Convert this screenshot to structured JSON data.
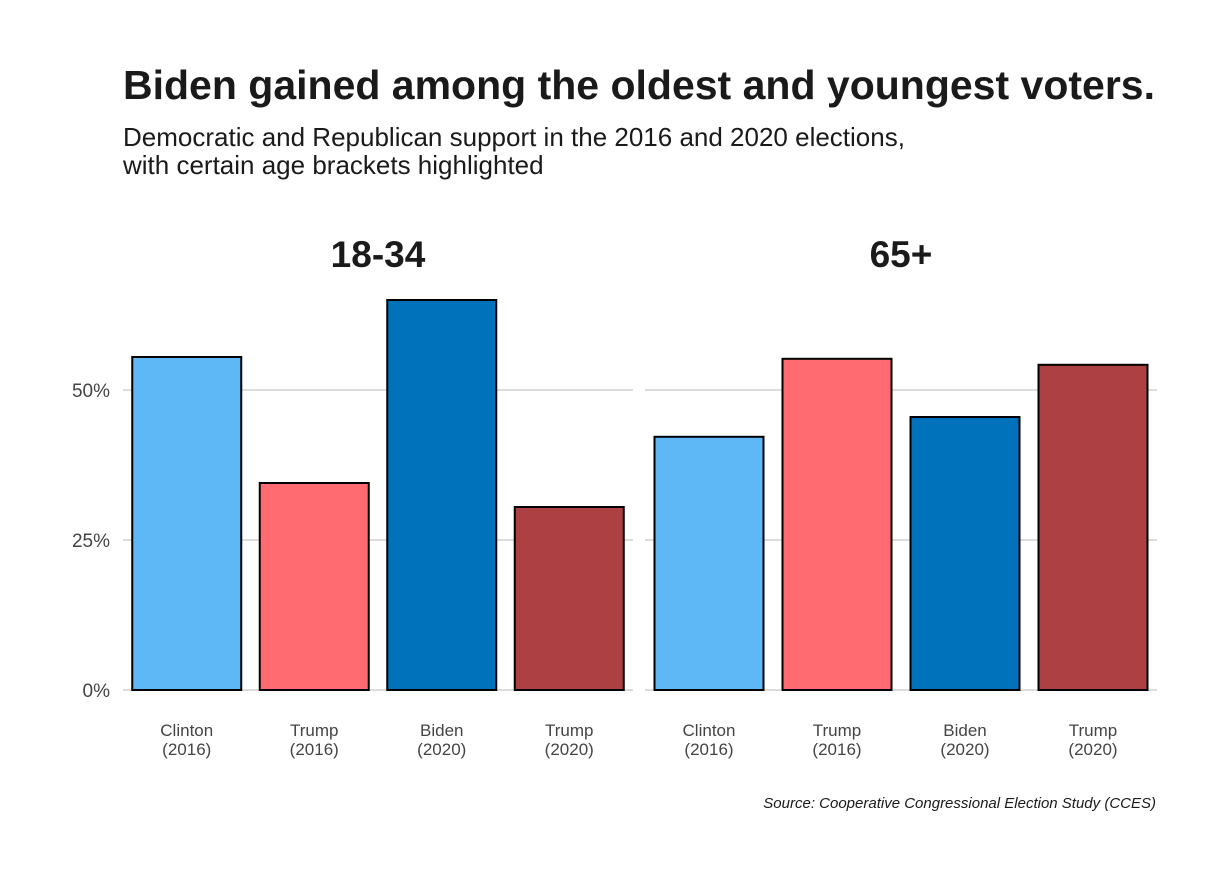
{
  "chart_data": {
    "type": "bar",
    "title": "Biden gained among the oldest and youngest voters.",
    "subtitle": [
      "Democratic and Republican support in the 2016 and 2020 elections,",
      "with certain age brackets highlighted"
    ],
    "source": "Source: Cooperative Congressional Election Study (CCES)",
    "ylim": [
      0,
      0.7
    ],
    "y_ticks": [
      {
        "value": 0,
        "label": "0%"
      },
      {
        "value": 0.25,
        "label": "25%"
      },
      {
        "value": 0.5,
        "label": "50%"
      }
    ],
    "categories": [
      {
        "line1": "Clinton",
        "line2": "(2016)",
        "color": "#5DB8F5"
      },
      {
        "line1": "Trump",
        "line2": "(2016)",
        "color": "#FF6B70"
      },
      {
        "line1": "Biden",
        "line2": "(2020)",
        "color": "#0072BB"
      },
      {
        "line1": "Trump",
        "line2": "(2020)",
        "color": "#AD4043"
      }
    ],
    "facets": [
      {
        "name": "18-34",
        "values": [
          0.555,
          0.345,
          0.65,
          0.305
        ]
      },
      {
        "name": "65+",
        "values": [
          0.422,
          0.552,
          0.455,
          0.542
        ]
      }
    ],
    "grid": true,
    "legend": "none"
  }
}
